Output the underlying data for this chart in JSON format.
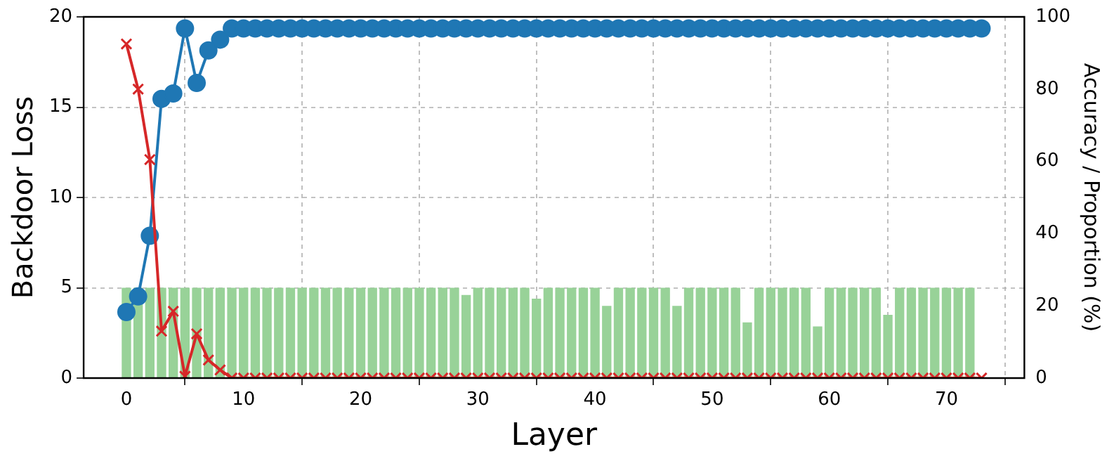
{
  "chart_data": {
    "type": "line",
    "xlabel": "Layer",
    "ylabel": "Backdoor Loss",
    "y2label": "Accuracy / Proportion (%)",
    "x": [
      0,
      1,
      2,
      3,
      4,
      5,
      6,
      7,
      8,
      9,
      10,
      11,
      12,
      13,
      14,
      15,
      16,
      17,
      18,
      19,
      20,
      21,
      22,
      23,
      24,
      25,
      26,
      27,
      28,
      29,
      30,
      31,
      32,
      33,
      34,
      35,
      36,
      37,
      38,
      39,
      40,
      41,
      42,
      43,
      44,
      45,
      46,
      47,
      48,
      49,
      50,
      51,
      52,
      53,
      54,
      55,
      56,
      57,
      58,
      59,
      60,
      61,
      62,
      63,
      64,
      65,
      66,
      67,
      68,
      69,
      70,
      71,
      72,
      73
    ],
    "xlim": [
      -3.65,
      76.65
    ],
    "xticks": [
      0,
      10,
      20,
      30,
      40,
      50,
      60,
      70
    ],
    "ylim": [
      0,
      20
    ],
    "yticks": [
      0,
      5,
      10,
      15,
      20
    ],
    "y2lim": [
      0,
      100
    ],
    "y2ticks": [
      0,
      20,
      40,
      60,
      80,
      100
    ],
    "grid": true,
    "series": [
      {
        "type": "bar",
        "axis": "y2",
        "color": "#98d298",
        "values": [
          25,
          25,
          25,
          25,
          25,
          25,
          25,
          25,
          25,
          25,
          25,
          25,
          25,
          25,
          25,
          25,
          25,
          25,
          25,
          25,
          25,
          25,
          25,
          25,
          25,
          25,
          25,
          25,
          25,
          23,
          25,
          25,
          25,
          25,
          25,
          22,
          25,
          25,
          25,
          25,
          25,
          20,
          25,
          25,
          25,
          25,
          25,
          20,
          25,
          25,
          25,
          25,
          25,
          15.4,
          25,
          25,
          25,
          25,
          25,
          14.3,
          25,
          25,
          25,
          25,
          25,
          17.5,
          25,
          25,
          25,
          25,
          25,
          25,
          25,
          null
        ]
      },
      {
        "axis": "y",
        "color": "#d62728",
        "marker": "cross",
        "values": [
          18.5,
          16.0,
          12.1,
          2.6,
          3.7,
          0.1,
          2.45,
          1.0,
          0.45,
          0,
          0,
          0,
          0,
          0,
          0,
          0,
          0,
          0,
          0,
          0,
          0,
          0,
          0,
          0,
          0,
          0,
          0,
          0,
          0,
          0,
          0,
          0,
          0,
          0,
          0,
          0,
          0,
          0,
          0,
          0,
          0,
          0,
          0,
          0,
          0,
          0,
          0,
          0,
          0,
          0,
          0,
          0,
          0,
          0,
          0,
          0,
          0,
          0,
          0,
          0,
          0,
          0,
          0,
          0,
          0,
          0,
          0,
          0,
          0,
          0,
          0,
          0,
          0,
          0
        ]
      },
      {
        "axis": "y2",
        "color": "#1f77b4",
        "marker": "circle",
        "values": [
          18.3,
          22.6,
          39.4,
          77.3,
          78.8,
          96.8,
          81.7,
          90.7,
          93.7,
          96.8,
          96.8,
          96.8,
          96.8,
          96.8,
          96.8,
          96.8,
          96.8,
          96.8,
          96.8,
          96.8,
          96.8,
          96.8,
          96.8,
          96.8,
          96.8,
          96.8,
          96.8,
          96.8,
          96.8,
          96.8,
          96.8,
          96.8,
          96.8,
          96.8,
          96.8,
          96.8,
          96.8,
          96.8,
          96.8,
          96.8,
          96.8,
          96.8,
          96.8,
          96.8,
          96.8,
          96.8,
          96.8,
          96.8,
          96.8,
          96.8,
          96.8,
          96.8,
          96.8,
          96.8,
          96.8,
          96.8,
          96.8,
          96.8,
          96.8,
          96.8,
          96.8,
          96.8,
          96.8,
          96.8,
          96.8,
          96.8,
          96.8,
          96.8,
          96.8,
          96.8,
          96.8,
          96.8,
          96.8,
          96.8
        ]
      }
    ]
  }
}
